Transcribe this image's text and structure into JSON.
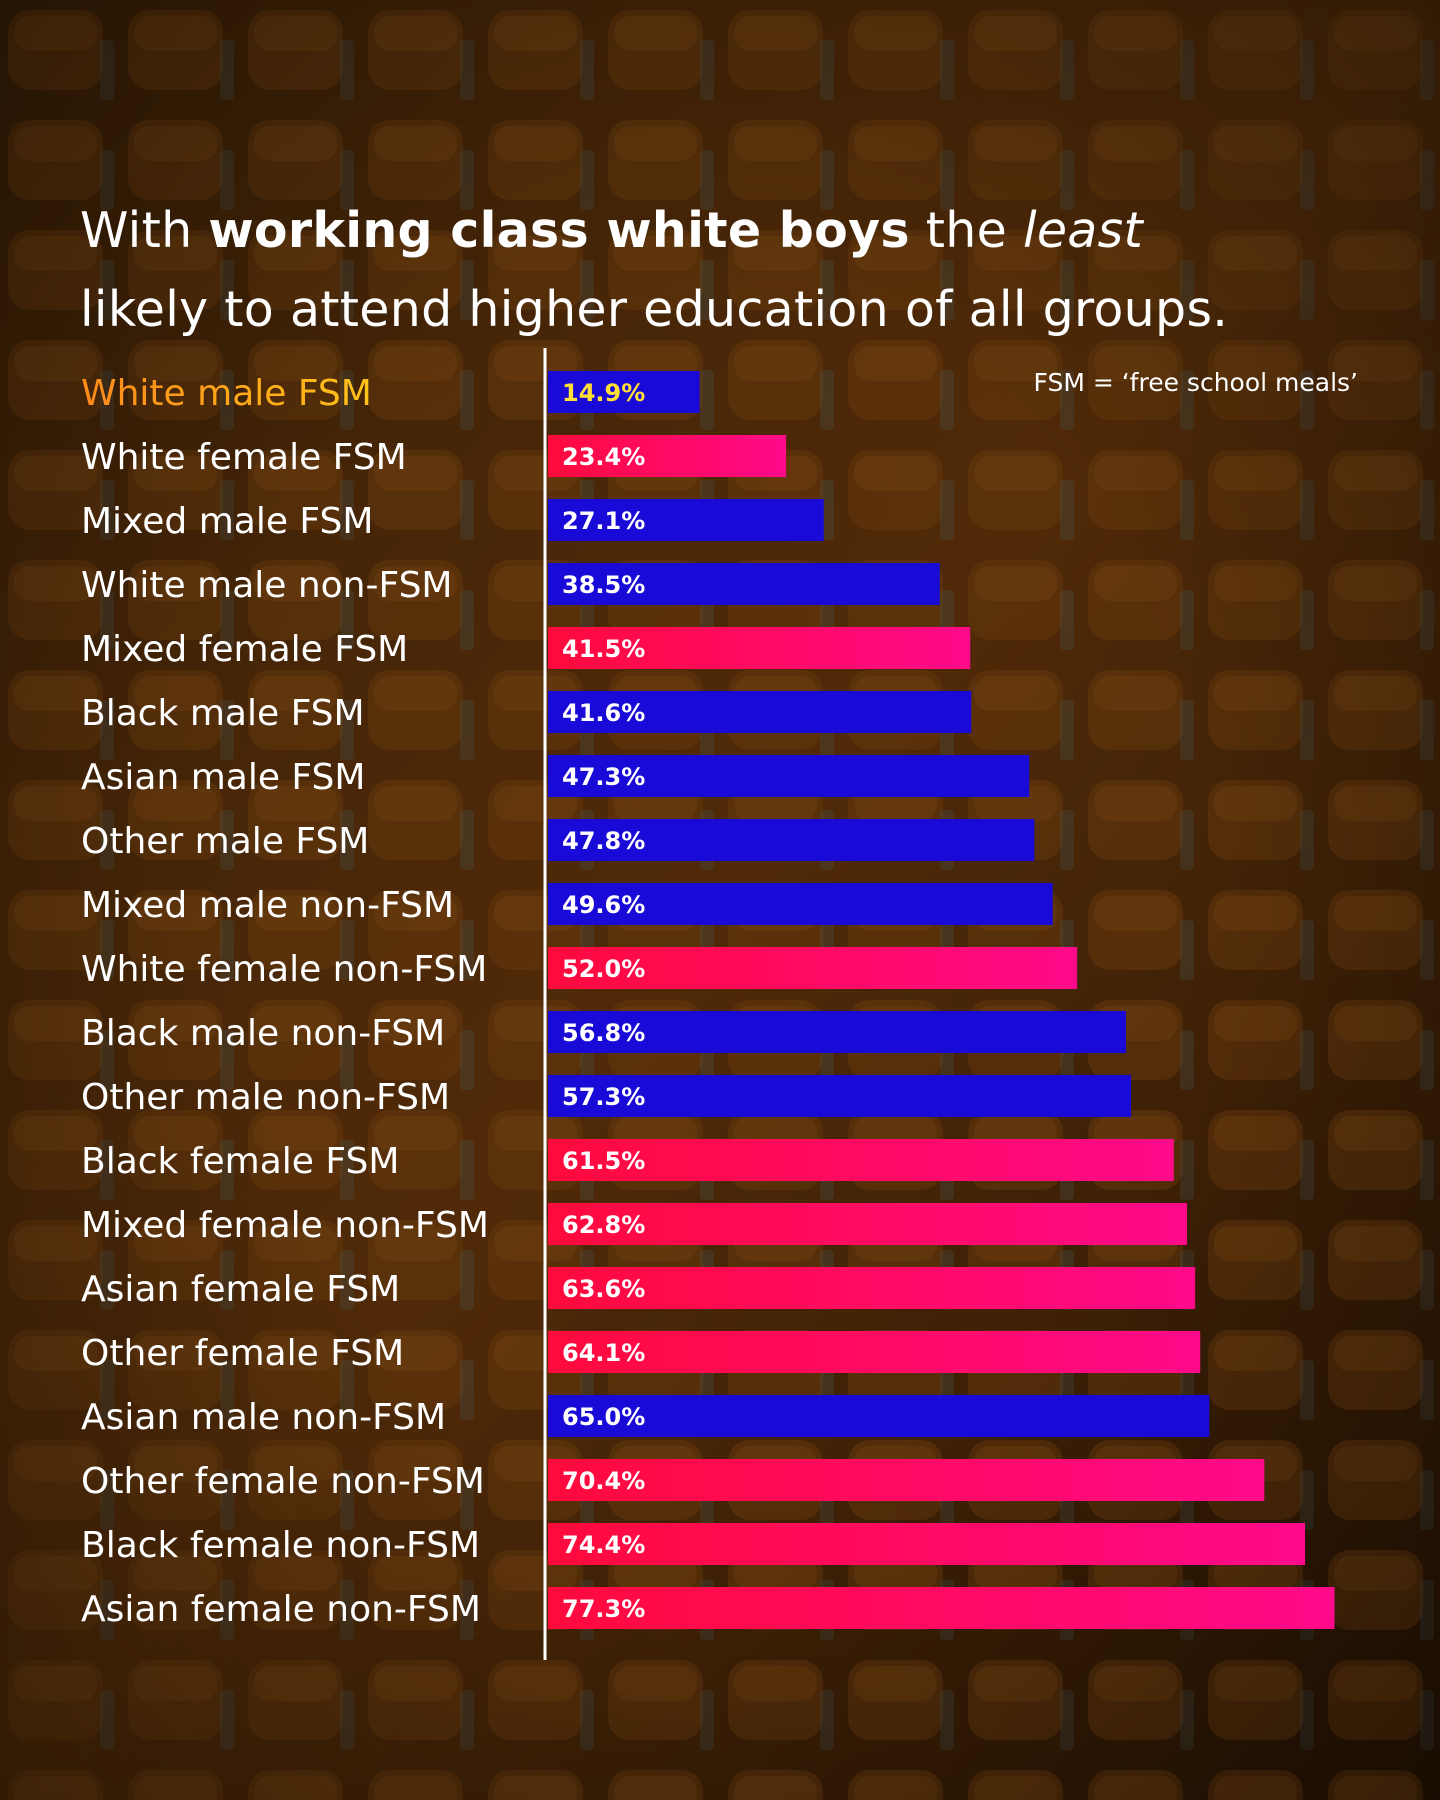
{
  "title": {
    "part1": "With ",
    "part2": "working class white boys",
    "part3": " the ",
    "part4": "least",
    "line2": "likely to attend higher education of all groups."
  },
  "note": "FSM = ‘free school meals’",
  "colors": {
    "male": "#1a0ad8",
    "female_start": "#ff0a3c",
    "female_end": "#ff0a8a",
    "highlight": "#ffc21a",
    "highlight_start": "#ff8a1a",
    "value_highlight": "#ffe033",
    "axis": "#ffffff"
  },
  "chart_data": {
    "type": "bar",
    "orientation": "horizontal",
    "xlim": [
      0,
      80
    ],
    "grid": false,
    "legend": "none",
    "categories": [
      "White male FSM",
      "White female FSM",
      "Mixed male FSM",
      "White male non-FSM",
      "Mixed female FSM",
      "Black male FSM",
      "Asian male FSM",
      "Other male FSM",
      "Mixed male non-FSM",
      "White female non-FSM",
      "Black male non-FSM",
      "Other male non-FSM",
      "Black female FSM",
      "Mixed female non-FSM",
      "Asian female FSM",
      "Other female FSM",
      "Asian male non-FSM",
      "Other female non-FSM",
      "Black female non-FSM",
      "Asian female non-FSM"
    ],
    "bars": [
      {
        "group": "White",
        "gender": "male",
        "status": "FSM",
        "value": 14.9,
        "label": "14.9%",
        "highlight": true
      },
      {
        "group": "White",
        "gender": "female",
        "status": "FSM",
        "value": 23.4,
        "label": "23.4%"
      },
      {
        "group": "Mixed",
        "gender": "male",
        "status": "FSM",
        "value": 27.1,
        "label": "27.1%"
      },
      {
        "group": "White",
        "gender": "male",
        "status": "non-FSM",
        "value": 38.5,
        "label": "38.5%"
      },
      {
        "group": "Mixed",
        "gender": "female",
        "status": "FSM",
        "value": 41.5,
        "label": "41.5%"
      },
      {
        "group": "Black",
        "gender": "male",
        "status": "FSM",
        "value": 41.6,
        "label": "41.6%"
      },
      {
        "group": "Asian",
        "gender": "male",
        "status": "FSM",
        "value": 47.3,
        "label": "47.3%"
      },
      {
        "group": "Other",
        "gender": "male",
        "status": "FSM",
        "value": 47.8,
        "label": "47.8%"
      },
      {
        "group": "Mixed",
        "gender": "male",
        "status": "non-FSM",
        "value": 49.6,
        "label": "49.6%"
      },
      {
        "group": "White",
        "gender": "female",
        "status": "non-FSM",
        "value": 52.0,
        "label": "52.0%"
      },
      {
        "group": "Black",
        "gender": "male",
        "status": "non-FSM",
        "value": 56.8,
        "label": "56.8%"
      },
      {
        "group": "Other",
        "gender": "male",
        "status": "non-FSM",
        "value": 57.3,
        "label": "57.3%"
      },
      {
        "group": "Black",
        "gender": "female",
        "status": "FSM",
        "value": 61.5,
        "label": "61.5%"
      },
      {
        "group": "Mixed",
        "gender": "female",
        "status": "non-FSM",
        "value": 62.8,
        "label": "62.8%"
      },
      {
        "group": "Asian",
        "gender": "female",
        "status": "FSM",
        "value": 63.6,
        "label": "63.6%"
      },
      {
        "group": "Other",
        "gender": "female",
        "status": "FSM",
        "value": 64.1,
        "label": "64.1%"
      },
      {
        "group": "Asian",
        "gender": "male",
        "status": "non-FSM",
        "value": 65.0,
        "label": "65.0%"
      },
      {
        "group": "Other",
        "gender": "female",
        "status": "non-FSM",
        "value": 70.4,
        "label": "70.4%"
      },
      {
        "group": "Black",
        "gender": "female",
        "status": "non-FSM",
        "value": 74.4,
        "label": "74.4%"
      },
      {
        "group": "Asian",
        "gender": "female",
        "status": "non-FSM",
        "value": 77.3,
        "label": "77.3%"
      }
    ]
  }
}
